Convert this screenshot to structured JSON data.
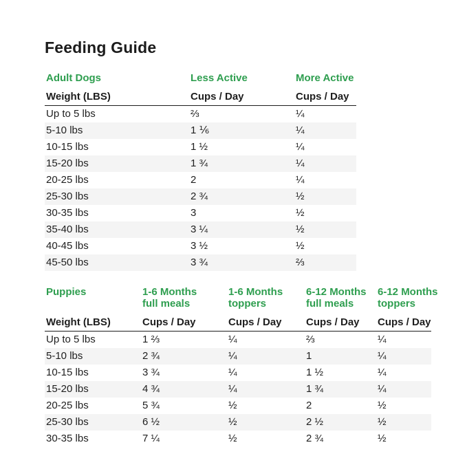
{
  "page": {
    "title": "Feeding Guide"
  },
  "colors": {
    "accent_green": "#2e9e4f",
    "text": "#1e1e1e",
    "row_stripe": "#f4f4f4",
    "background": "#ffffff"
  },
  "adult_table": {
    "section_label": "Adult Dogs",
    "column_groups": [
      "Less Active",
      "More Active"
    ],
    "header": {
      "weight": "Weight (LBS)",
      "cups": "Cups / Day"
    },
    "rows": [
      {
        "weight": "Up to 5 lbs",
        "less_active": "⅔",
        "more_active": "¼"
      },
      {
        "weight": "5-10 lbs",
        "less_active": "1 ⅙",
        "more_active": "¼"
      },
      {
        "weight": "10-15 lbs",
        "less_active": "1 ½",
        "more_active": "¼"
      },
      {
        "weight": "15-20 lbs",
        "less_active": "1 ¾",
        "more_active": "¼"
      },
      {
        "weight": "20-25 lbs",
        "less_active": "2",
        "more_active": "¼"
      },
      {
        "weight": "25-30 lbs",
        "less_active": "2 ¾",
        "more_active": "½"
      },
      {
        "weight": "30-35 lbs",
        "less_active": "3",
        "more_active": "½"
      },
      {
        "weight": "35-40 lbs",
        "less_active": "3 ¼",
        "more_active": "½"
      },
      {
        "weight": "40-45 lbs",
        "less_active": "3 ½",
        "more_active": "½"
      },
      {
        "weight": "45-50 lbs",
        "less_active": "3 ¾",
        "more_active": "⅔"
      }
    ]
  },
  "puppy_table": {
    "section_label": "Puppies",
    "column_groups": [
      {
        "line1": "1-6 Months",
        "line2": "full meals"
      },
      {
        "line1": "1-6 Months",
        "line2": "toppers"
      },
      {
        "line1": "6-12 Months",
        "line2": "full meals"
      },
      {
        "line1": "6-12 Months",
        "line2": "toppers"
      }
    ],
    "header": {
      "weight": "Weight (LBS)",
      "cups": "Cups / Day"
    },
    "rows": [
      {
        "weight": "Up to 5 lbs",
        "full_1_6": "1 ⅔",
        "top_1_6": "¼",
        "full_6_12": "⅔",
        "top_6_12": "¼"
      },
      {
        "weight": "5-10 lbs",
        "full_1_6": "2 ¾",
        "top_1_6": "¼",
        "full_6_12": "1",
        "top_6_12": "¼"
      },
      {
        "weight": "10-15 lbs",
        "full_1_6": "3 ¾",
        "top_1_6": "¼",
        "full_6_12": "1 ½",
        "top_6_12": "¼"
      },
      {
        "weight": "15-20 lbs",
        "full_1_6": "4 ¾",
        "top_1_6": "¼",
        "full_6_12": "1 ¾",
        "top_6_12": "¼"
      },
      {
        "weight": "20-25 lbs",
        "full_1_6": "5 ¾",
        "top_1_6": "½",
        "full_6_12": "2",
        "top_6_12": "½"
      },
      {
        "weight": "25-30 lbs",
        "full_1_6": "6 ½",
        "top_1_6": "½",
        "full_6_12": "2 ½",
        "top_6_12": "½"
      },
      {
        "weight": "30-35 lbs",
        "full_1_6": "7 ¼",
        "top_1_6": "½",
        "full_6_12": "2 ¾",
        "top_6_12": "½"
      }
    ]
  }
}
